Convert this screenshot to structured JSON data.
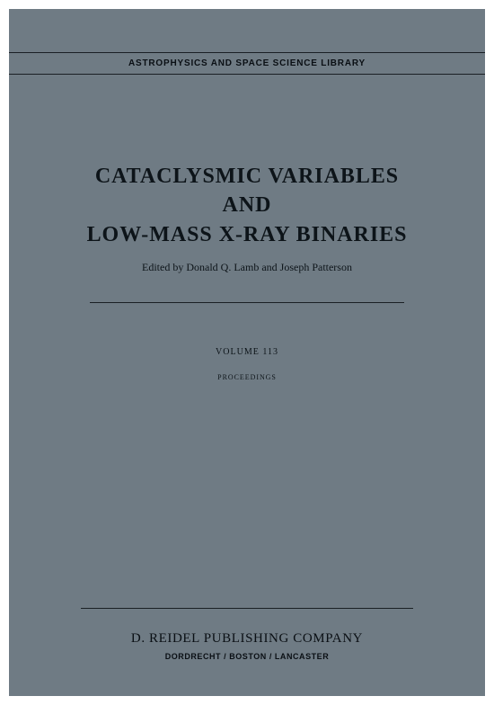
{
  "cover": {
    "background_color": "#6f7b84",
    "text_color": "#0a0f14",
    "rule_color": "#1a1f24"
  },
  "series": "ASTROPHYSICS AND SPACE SCIENCE LIBRARY",
  "title": {
    "line1": "CATACLYSMIC VARIABLES",
    "line2": "AND",
    "line3": "LOW-MASS X-RAY BINARIES"
  },
  "editors_line": "Edited by Donald Q. Lamb and Joseph Patterson",
  "volume": "VOLUME 113",
  "proceedings": "PROCEEDINGS",
  "publisher": "D. REIDEL PUBLISHING COMPANY",
  "cities": "DORDRECHT / BOSTON / LANCASTER"
}
